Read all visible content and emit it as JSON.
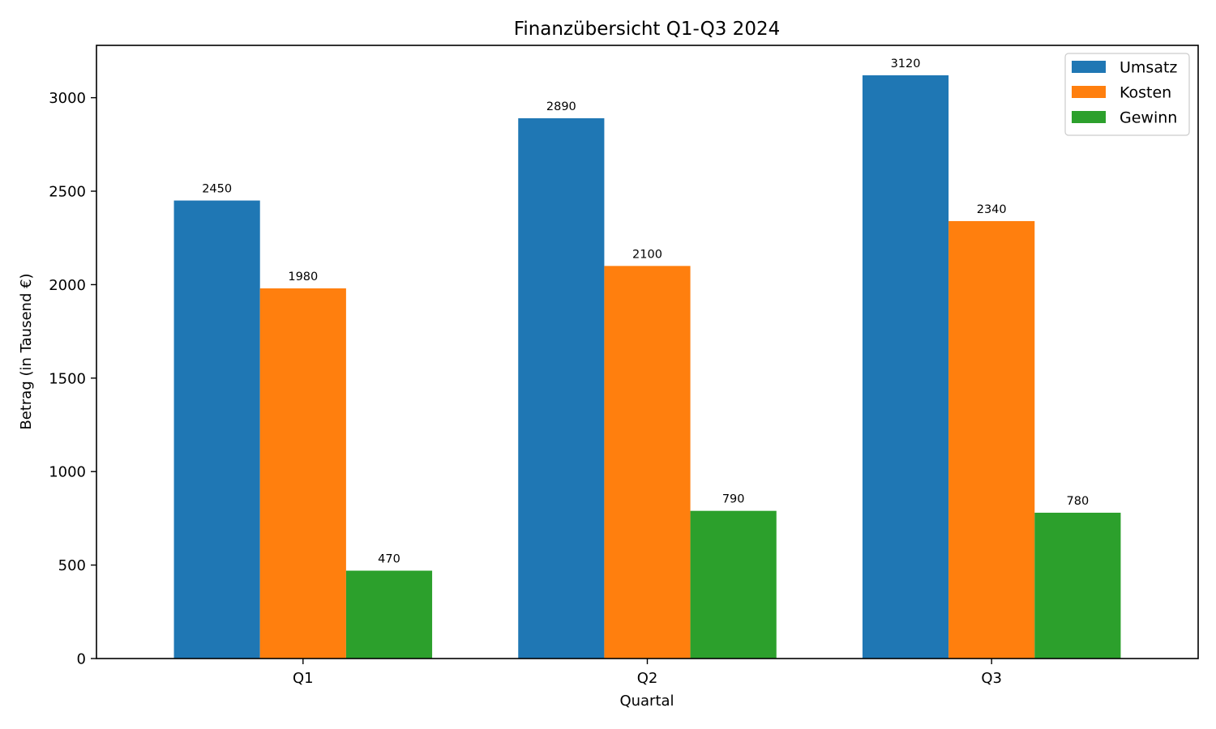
{
  "chart_data": {
    "type": "bar",
    "title": "Finanzübersicht Q1-Q3 2024",
    "xlabel": "Quartal",
    "ylabel": "Betrag (in Tausend €)",
    "categories": [
      "Q1",
      "Q2",
      "Q3"
    ],
    "series": [
      {
        "name": "Umsatz",
        "color": "#1f77b4",
        "values": [
          2450,
          2890,
          3120
        ]
      },
      {
        "name": "Kosten",
        "color": "#ff7f0e",
        "values": [
          1980,
          2100,
          2340
        ]
      },
      {
        "name": "Gewinn",
        "color": "#2ca02c",
        "values": [
          470,
          790,
          780
        ]
      }
    ],
    "ylim": [
      0,
      3280
    ],
    "yticks": [
      0,
      500,
      1000,
      1500,
      2000,
      2500,
      3000
    ],
    "grid": false,
    "legend_position": "top-right",
    "data_labels": true
  }
}
